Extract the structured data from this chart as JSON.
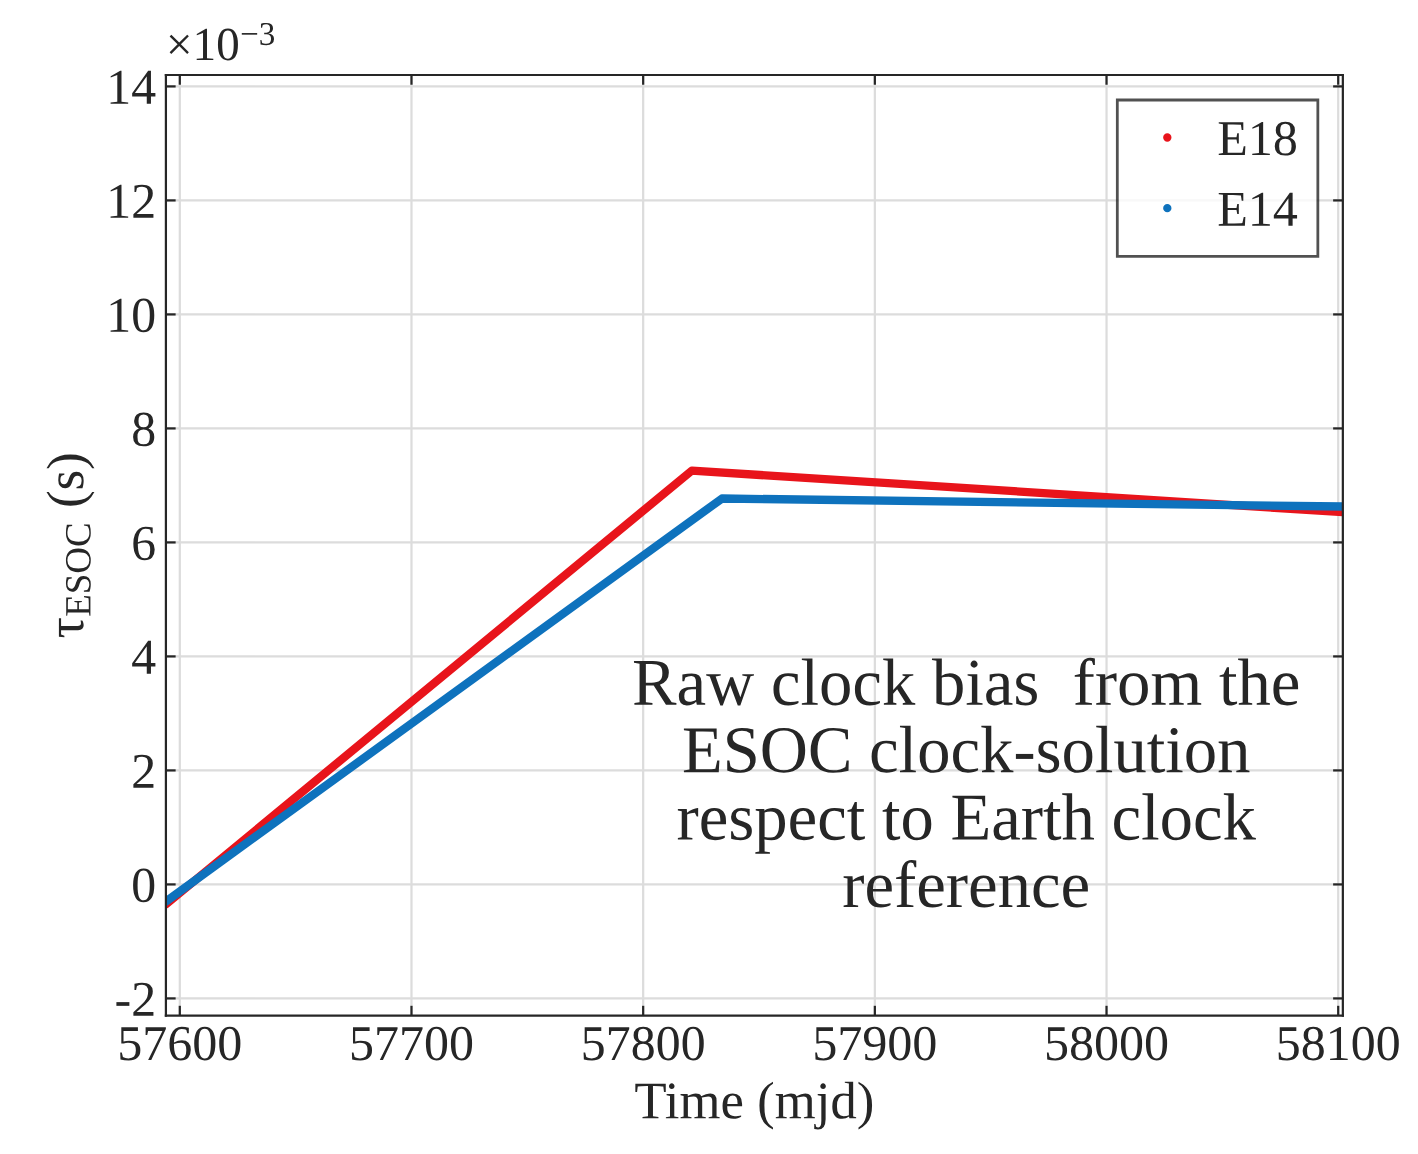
{
  "chart_data": {
    "type": "line",
    "xlabel": "Time (mjd)",
    "ylabel": "τ$_{ESOC}$ (s)",
    "series": [
      {
        "name": "E18",
        "color": "#e8141b",
        "x": [
          57594,
          57821,
          58102
        ],
        "values": [
          -0.35,
          7.26,
          6.53
        ]
      },
      {
        "name": "E14",
        "color": "#0e72bd",
        "x": [
          57594,
          57834,
          58102
        ],
        "values": [
          -0.3,
          6.77,
          6.63
        ]
      }
    ],
    "xlim": [
      57594,
      58102
    ],
    "xticks": [
      57600,
      57700,
      57800,
      57900,
      58000,
      58100
    ],
    "ylim": [
      -2.3,
      14.2
    ],
    "yticks": [
      {
        "value": -2,
        "label": "-2"
      },
      0,
      2,
      4,
      6,
      8,
      10,
      12,
      14
    ],
    "annotations": [
      "×10$^{−3}$",
      "Raw clock bias  from the\nESOC clock-solution\nrespect to Earth clock\nreference"
    ],
    "grid": true,
    "legend": "top right",
    "line_style": "solid"
  }
}
